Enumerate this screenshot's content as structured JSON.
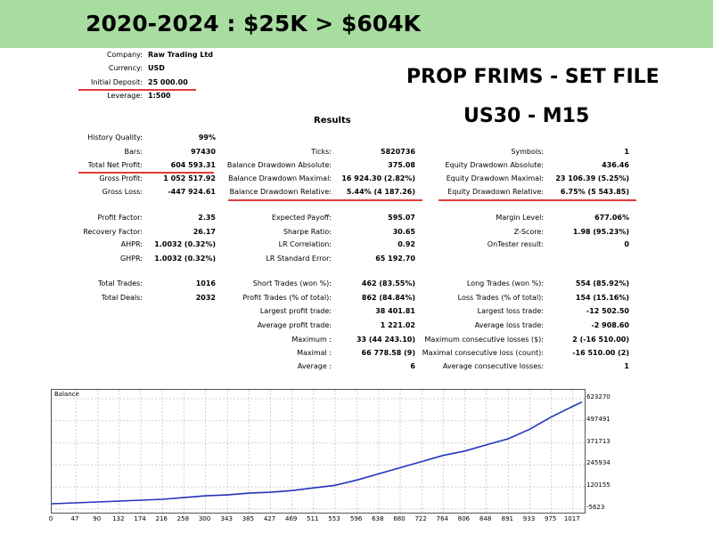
{
  "banner": {
    "title": "2020-2024 : $25K > $604K"
  },
  "promo": {
    "line1": "PROP FRIMS - SET FILE",
    "line2": "US30 - M15"
  },
  "header": {
    "rows": [
      {
        "label": "Company:",
        "value": "Raw Trading Ltd"
      },
      {
        "label": "Currency:",
        "value": "USD"
      },
      {
        "label": "Initial Deposit:",
        "value": "25 000.00"
      },
      {
        "label": "Leverage:",
        "value": "1:500"
      }
    ]
  },
  "results": {
    "title": "Results",
    "col1": [
      {
        "label": "History Quality:",
        "value": "99%"
      },
      {
        "label": "Bars:",
        "value": "97430"
      },
      {
        "label": "Total Net Profit:",
        "value": "604 593.31"
      },
      {
        "label": "Gross Profit:",
        "value": "1 052 517.92"
      },
      {
        "label": "Gross Loss:",
        "value": "-447 924.61"
      },
      {
        "label": "Profit Factor:",
        "value": "2.35"
      },
      {
        "label": "Recovery Factor:",
        "value": "26.17"
      },
      {
        "label": "AHPR:",
        "value": "1.0032 (0.32%)"
      },
      {
        "label": "GHPR:",
        "value": "1.0032 (0.32%)"
      },
      {
        "label": "Total Trades:",
        "value": "1016"
      },
      {
        "label": "Total Deals:",
        "value": "2032"
      }
    ],
    "col2": [
      {
        "label": "Ticks:",
        "value": "5820736"
      },
      {
        "label": "Balance Drawdown Absolute:",
        "value": "375.08"
      },
      {
        "label": "Balance Drawdown Maximal:",
        "value": "16 924.30 (2.82%)"
      },
      {
        "label": "Balance Drawdown Relative:",
        "value": "5.44% (4 187.26)"
      },
      {
        "label": "Expected Payoff:",
        "value": "595.07"
      },
      {
        "label": "Sharpe Ratio:",
        "value": "30.65"
      },
      {
        "label": "LR Correlation:",
        "value": "0.92"
      },
      {
        "label": "LR Standard Error:",
        "value": "65 192.70"
      },
      {
        "label": "Short Trades (won %):",
        "value": "462 (83.55%)"
      },
      {
        "label": "Profit Trades (% of total):",
        "value": "862 (84.84%)"
      },
      {
        "label": "Largest profit trade:",
        "value": "38 401.81"
      },
      {
        "label": "Average profit trade:",
        "value": "1 221.02"
      },
      {
        "label": "Maximum :",
        "value": "33 (44 243.10)"
      },
      {
        "label": "Maximal :",
        "value": "66 778.58 (9)"
      },
      {
        "label": "Average :",
        "value": "6"
      }
    ],
    "col3": [
      {
        "label": "Symbols:",
        "value": "1"
      },
      {
        "label": "Equity Drawdown Absolute:",
        "value": "436.46"
      },
      {
        "label": "Equity Drawdown Maximal:",
        "value": "23 106.39 (5.25%)"
      },
      {
        "label": "Equity Drawdown Relative:",
        "value": "6.75% (5 543.85)"
      },
      {
        "label": "Margin Level:",
        "value": "677.06%"
      },
      {
        "label": "Z-Score:",
        "value": "1.98 (95.23%)"
      },
      {
        "label": "OnTester result:",
        "value": "0"
      },
      {
        "label": "Long Trades (won %):",
        "value": "554 (85.92%)"
      },
      {
        "label": "Loss Trades (% of total):",
        "value": "154 (15.16%)"
      },
      {
        "label": "Largest loss trade:",
        "value": "-12 502.50"
      },
      {
        "label": "Average loss trade:",
        "value": "-2 908.60"
      },
      {
        "label": "Maximum consecutive losses ($):",
        "value": "2 (-16 510.00)"
      },
      {
        "label": "Maximal consecutive loss (count):",
        "value": "-16 510.00 (2)"
      },
      {
        "label": "Average consecutive losses:",
        "value": "1"
      }
    ]
  },
  "colors": {
    "banner": "#a8dda0",
    "underline": "#e03b3b",
    "series": "#2233bb"
  },
  "chart_data": {
    "type": "line",
    "title": "Balance",
    "yticks": [
      "623270",
      "497491",
      "371713",
      "245934",
      "120155",
      "-5623"
    ],
    "ylim": [
      -5623,
      623270
    ],
    "xticks": [
      "0",
      "47",
      "90",
      "132",
      "174",
      "216",
      "258",
      "300",
      "343",
      "385",
      "427",
      "469",
      "511",
      "553",
      "596",
      "638",
      "680",
      "722",
      "764",
      "806",
      "848",
      "891",
      "933",
      "975",
      "1017"
    ],
    "xlim": [
      0,
      1040
    ],
    "grid": true,
    "series": [
      {
        "name": "Balance",
        "x": [
          0,
          47,
          90,
          132,
          174,
          216,
          258,
          300,
          343,
          385,
          427,
          469,
          511,
          553,
          596,
          638,
          680,
          722,
          764,
          806,
          848,
          891,
          933,
          975,
          1017,
          1035
        ],
        "y": [
          25000,
          30000,
          35000,
          40000,
          45000,
          50000,
          60000,
          70000,
          75000,
          85000,
          90000,
          100000,
          115000,
          130000,
          160000,
          195000,
          230000,
          265000,
          300000,
          325000,
          360000,
          395000,
          450000,
          520000,
          580000,
          604593
        ]
      }
    ]
  }
}
